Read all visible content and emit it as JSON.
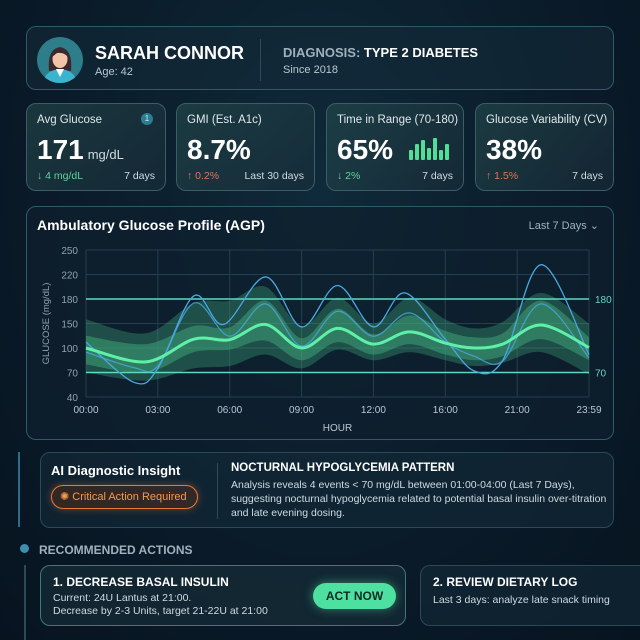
{
  "patient": {
    "name": "SARAH CONNOR",
    "age": "Age: 42",
    "diagnosis_label": "DIAGNOSIS:",
    "diagnosis": "TYPE 2 DIABETES",
    "since": "Since 2018"
  },
  "kpis": [
    {
      "title": "Avg Glucose",
      "value": "171",
      "unit": "mg/dL",
      "delta": "↓ 4 mg/dL",
      "delta_dir": "down",
      "period": "7 days",
      "badge": "1"
    },
    {
      "title": "GMI (Est. A1c)",
      "value": "8.7%",
      "delta": "↑ 0.2%",
      "delta_dir": "up",
      "period": "Last 30 days"
    },
    {
      "title": "Time in Range (70-180)",
      "value": "65%",
      "delta": "↓ 2%",
      "delta_dir": "down",
      "period": "7 days"
    },
    {
      "title": "Glucose Variability (CV)",
      "value": "38%",
      "delta": "↑ 1.5%",
      "delta_dir": "up",
      "period": "7 days"
    }
  ],
  "chart_data": {
    "type": "line",
    "title": "Ambulatory Glucose Profile (AGP)",
    "range_selector": "Last 7 Days",
    "xlabel": "HOUR",
    "ylabel": "GLUCOSE (mg/dL)",
    "x_ticks": [
      "00:00",
      "03:00",
      "06:00",
      "09:00",
      "12:00",
      "16:00",
      "21:00",
      "23:59"
    ],
    "y_ticks": [
      250,
      220,
      180,
      150,
      100,
      70,
      40
    ],
    "target_lines": [
      {
        "value": 180,
        "label": "180"
      },
      {
        "value": 70,
        "label": "70"
      }
    ],
    "grid": true,
    "colors": {
      "median": "#5ef0a8",
      "band": "#3fa97c",
      "individual": "#4aa8e0",
      "target": "#5fd8c0"
    },
    "times": [
      "00:00",
      "02:30",
      "04:30",
      "06:00",
      "07:30",
      "09:00",
      "10:30",
      "12:00",
      "14:00",
      "16:00",
      "18:00",
      "20:00",
      "22:00",
      "23:59"
    ],
    "median": [
      100,
      83,
      118,
      117,
      148,
      100,
      140,
      108,
      133,
      110,
      100,
      108,
      147,
      101
    ],
    "p25": [
      80,
      70,
      95,
      98,
      115,
      85,
      112,
      92,
      108,
      92,
      85,
      90,
      118,
      85
    ],
    "p75": [
      125,
      108,
      145,
      142,
      178,
      120,
      168,
      128,
      160,
      135,
      122,
      130,
      178,
      122
    ],
    "p5": [
      70,
      60,
      75,
      78,
      92,
      75,
      98,
      85,
      95,
      85,
      78,
      82,
      95,
      68
    ],
    "p95": [
      155,
      130,
      175,
      178,
      200,
      145,
      182,
      150,
      182,
      155,
      140,
      152,
      190,
      150
    ],
    "individual": [
      {
        "times": [
          "00:00",
          "02:00",
          "03:00",
          "04:30",
          "05:45",
          "07:30",
          "09:00",
          "10:30",
          "12:00",
          "13:45",
          "16:00",
          "18:00",
          "20:00",
          "22:00",
          "23:59"
        ],
        "values": [
          112,
          58,
          75,
          185,
          148,
          216,
          143,
          202,
          143,
          190,
          118,
          72,
          85,
          232,
          92
        ]
      },
      {
        "times": [
          "00:00",
          "02:00",
          "03:00",
          "04:30",
          "06:00",
          "07:30",
          "09:00",
          "10:30",
          "12:00",
          "14:00",
          "16:00",
          "18:00",
          "20:00",
          "22:00",
          "23:59"
        ],
        "values": [
          95,
          76,
          78,
          175,
          124,
          174,
          104,
          165,
          124,
          163,
          112,
          90,
          84,
          174,
          88
        ]
      }
    ]
  },
  "insight": {
    "title": "AI Diagnostic Insight",
    "badge": "Critical Action Required",
    "pattern": "NOCTURNAL HYPOGLYCEMIA PATTERN",
    "text": "Analysis reveals 4 events < 70 mg/dL between 01:00-04:00 (Last 7 Days), suggesting nocturnal hypoglycemia related to potential basal insulin over-titration and late evening dosing."
  },
  "recommended": {
    "heading": "RECOMMENDED ACTIONS",
    "actions": [
      {
        "title": "1. DECREASE BASAL INSULIN",
        "line1": "Current: 24U Lantus at 21:00.",
        "line2": "Decrease by 2-3 Units, target 21-22U at 21:00",
        "button": "ACT NOW"
      },
      {
        "title": "2. REVIEW DIETARY LOG",
        "line1": "Last 3 days: analyze late snack timing"
      }
    ]
  }
}
